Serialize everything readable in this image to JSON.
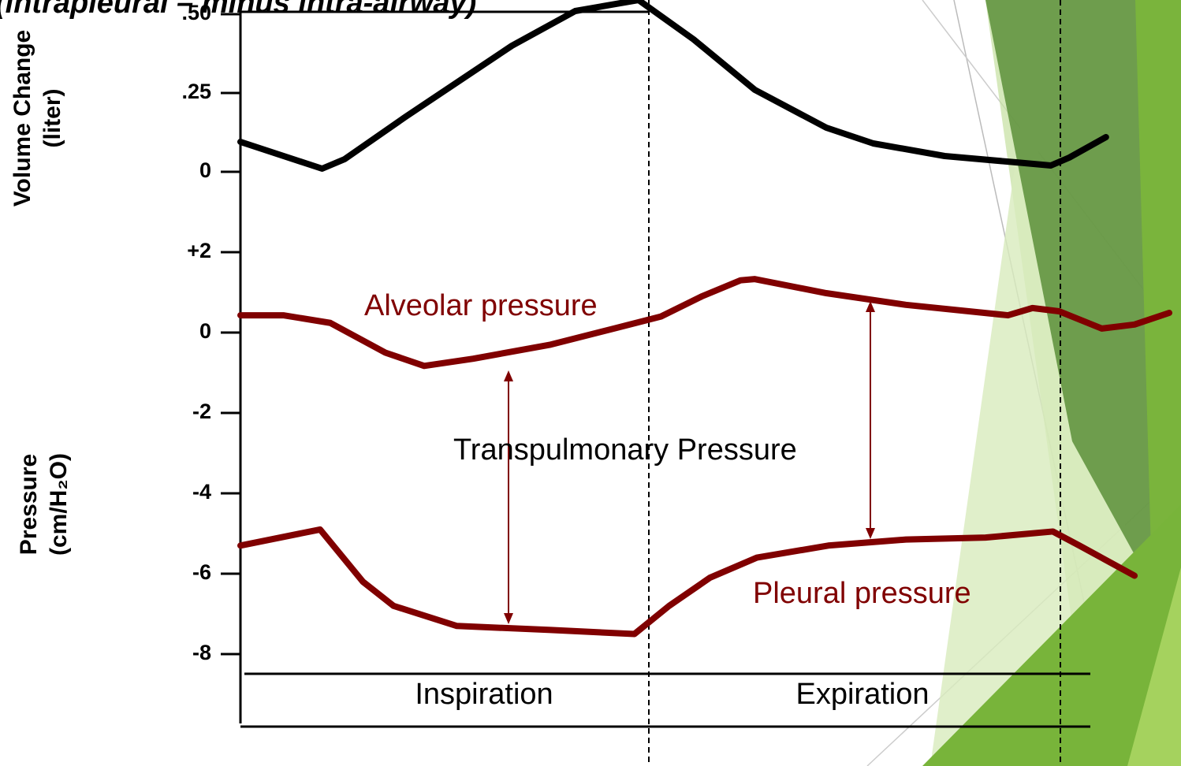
{
  "annotation": "(intrapleural – minus intra-airway)",
  "phases": [
    "Inspiration",
    "Expiration"
  ],
  "transpulmonary_label": "Transpulmonary Pressure",
  "chart_data": [
    {
      "type": "line",
      "y_label": [
        "Volume Change",
        "(liter)"
      ],
      "xlim": [
        0,
        2.3
      ],
      "ylim": [
        0,
        0.5
      ],
      "yticks": [
        {
          "value": 0.5,
          "label": ".50"
        },
        {
          "value": 0.25,
          "label": ".25"
        },
        0
      ],
      "series": [
        {
          "name": "Volume Change",
          "color": "#000000",
          "x": [
            0,
            0.2,
            0.255,
            0.405,
            0.665,
            0.82,
            0.975,
            1.11,
            1.26,
            1.435,
            1.55,
            1.725,
            1.9,
            1.985,
            2.03,
            2.12
          ],
          "values": [
            0.095,
            0.01,
            0.04,
            0.175,
            0.4,
            0.51,
            0.545,
            0.42,
            0.26,
            0.14,
            0.09,
            0.05,
            0.03,
            0.02,
            0.045,
            0.11
          ]
        }
      ]
    },
    {
      "type": "line",
      "y_label": [
        "Pressure",
        "(cm/H₂O)"
      ],
      "xlim": [
        0,
        2.3
      ],
      "ylim": [
        -8,
        2
      ],
      "yticks": [
        {
          "value": 2,
          "label": "+2"
        },
        0,
        -2,
        -4,
        -6,
        -8
      ],
      "series": [
        {
          "name": "Alveolar pressure",
          "color": "#800000",
          "x": [
            0,
            0.105,
            0.22,
            0.355,
            0.45,
            0.57,
            0.76,
            0.915,
            1.03,
            1.13,
            1.225,
            1.26,
            1.435,
            1.63,
            1.88,
            1.94,
            2.005,
            2.11,
            2.19,
            2.275
          ],
          "values": [
            0.43,
            0.43,
            0.24,
            -0.5,
            -0.83,
            -0.65,
            -0.3,
            0.1,
            0.4,
            0.9,
            1.3,
            1.33,
            0.98,
            0.69,
            0.43,
            0.61,
            0.53,
            0.1,
            0.2,
            0.49
          ]
        },
        {
          "name": "Pleural pressure",
          "color": "#800000",
          "x": [
            0,
            0.195,
            0.3,
            0.375,
            0.53,
            0.76,
            0.965,
            1.05,
            1.15,
            1.265,
            1.44,
            1.63,
            1.825,
            1.99,
            2.055,
            2.19
          ],
          "values": [
            -5.3,
            -4.9,
            -6.2,
            -6.8,
            -7.3,
            -7.4,
            -7.5,
            -6.8,
            -6.1,
            -5.6,
            -5.3,
            -5.15,
            -5.1,
            -4.95,
            -5.3,
            -6.05
          ]
        }
      ]
    }
  ]
}
